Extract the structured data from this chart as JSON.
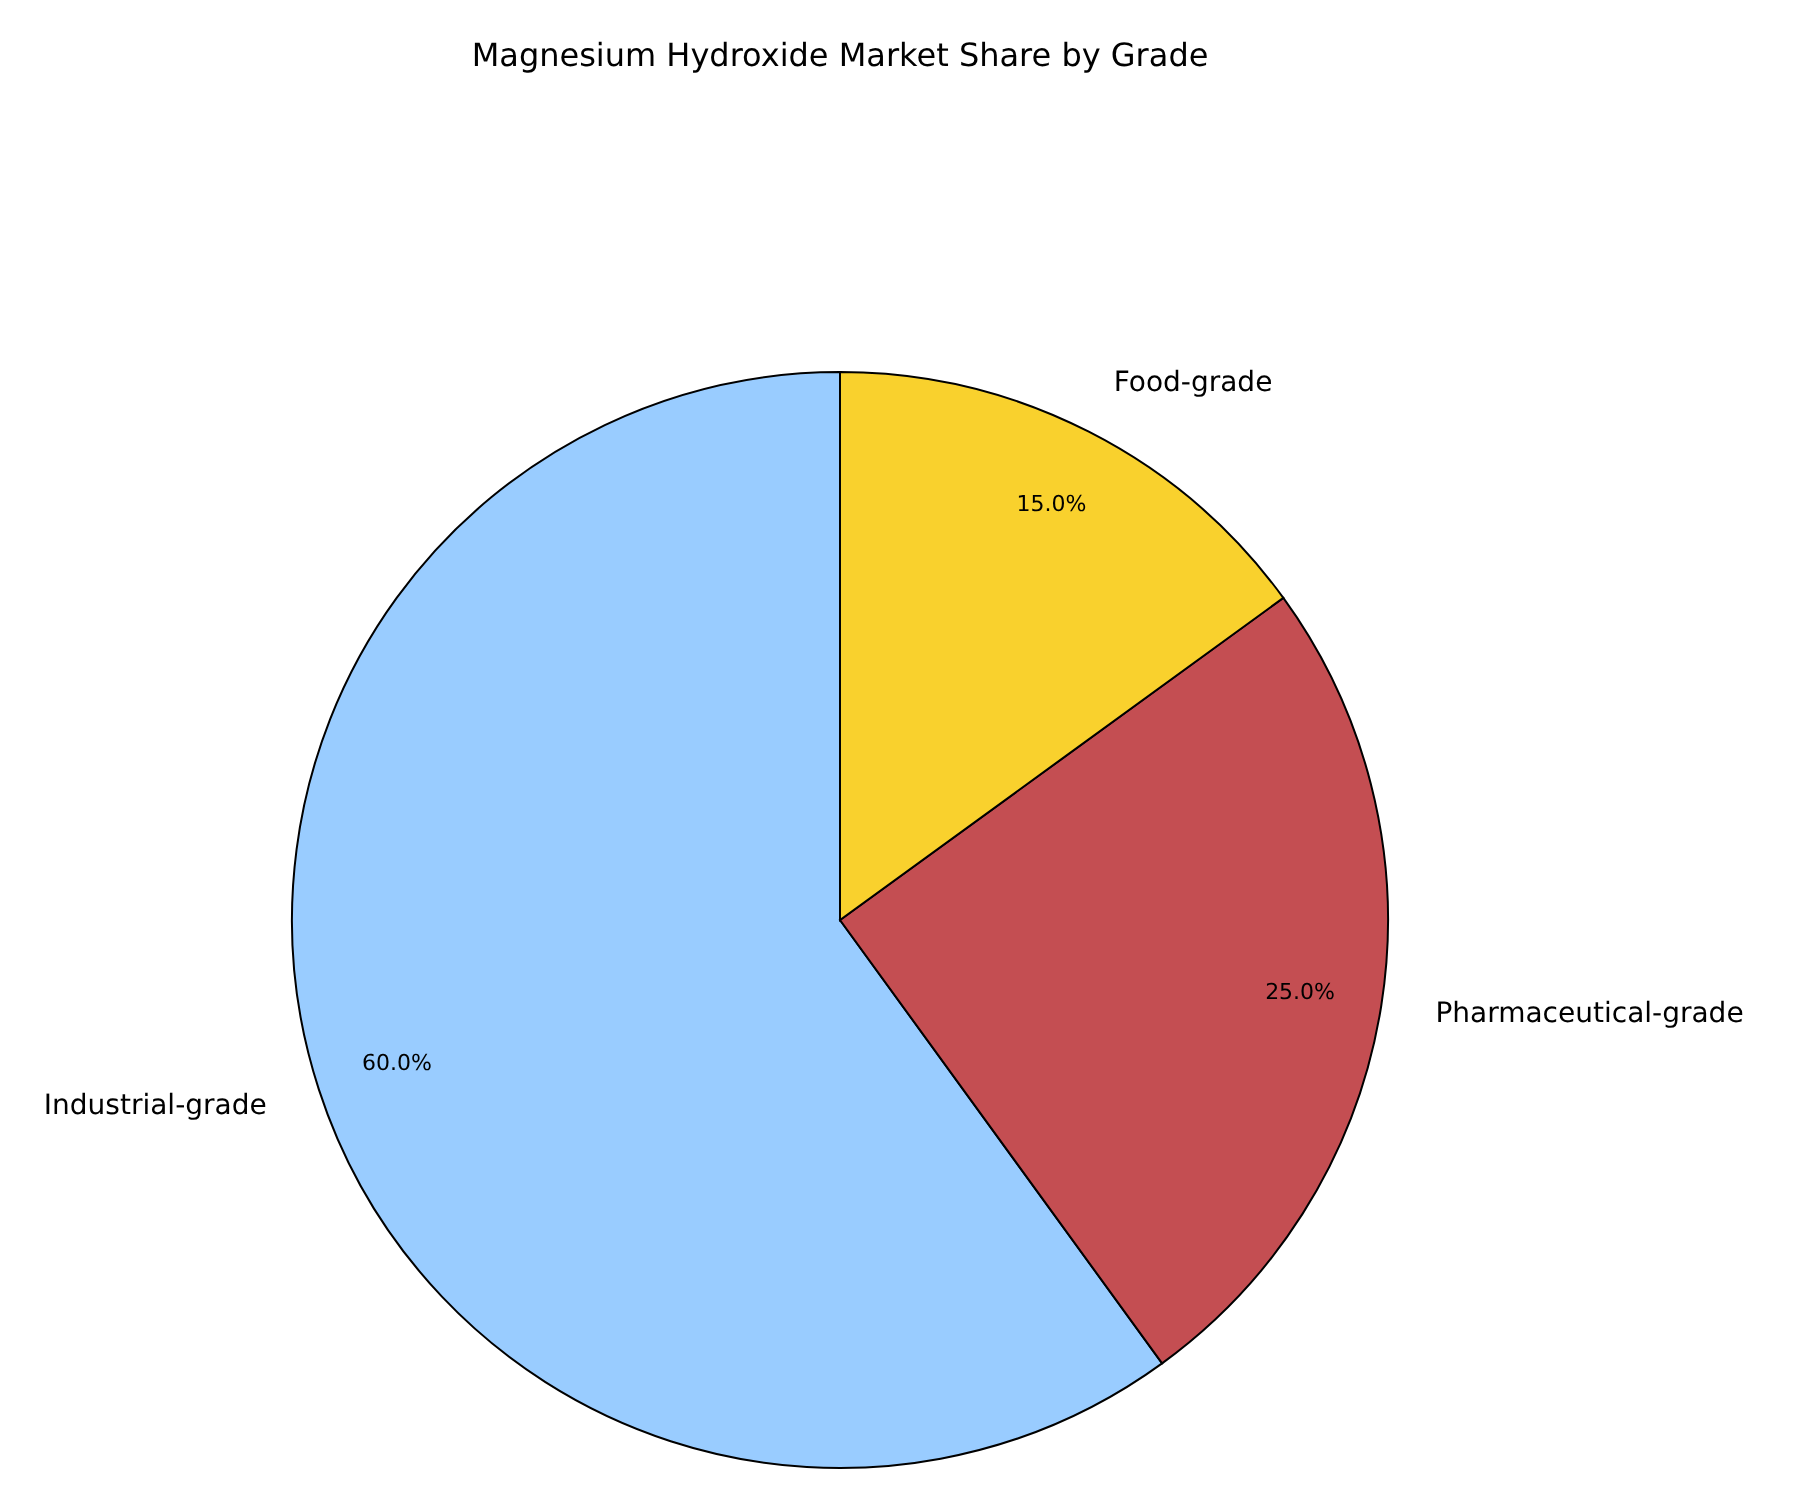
{
  "chart_data": {
    "type": "pie",
    "title": "Magnesium Hydroxide Market Share by Grade",
    "categories": [
      "Industrial-grade",
      "Pharmaceutical-grade",
      "Food-grade"
    ],
    "values": [
      60,
      25,
      15
    ],
    "colors": [
      "#99ccff",
      "#c44e52",
      "#f9d12d"
    ],
    "value_labels": [
      "60.0%",
      "25.0%",
      "15.0%"
    ]
  }
}
